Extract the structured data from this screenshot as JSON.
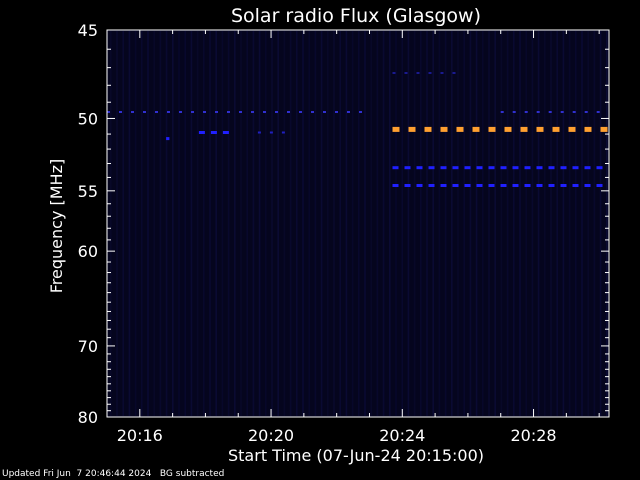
{
  "chart_data": {
    "type": "heatmap",
    "title": "Solar radio Flux (Glasgow)",
    "xlabel": "Start Time (07-Jun-24 20:15:00)",
    "ylabel": "Frequency [MHz]",
    "x_unit": "minutes after 20:15:00",
    "xlim": [
      0,
      15.3
    ],
    "ylim": [
      80,
      45
    ],
    "x_ticks": [
      {
        "value": 1,
        "label": "20:16"
      },
      {
        "value": 5,
        "label": "20:20"
      },
      {
        "value": 9,
        "label": "20:24"
      },
      {
        "value": 13,
        "label": "20:28"
      }
    ],
    "y_ticks": [
      {
        "value": 45,
        "label": "45"
      },
      {
        "value": 50,
        "label": "50"
      },
      {
        "value": 55,
        "label": "55"
      },
      {
        "value": 60,
        "label": "60"
      },
      {
        "value": 70,
        "label": "70"
      },
      {
        "value": 80,
        "label": "80"
      }
    ],
    "grid": false,
    "colors": {
      "background": "#000000",
      "plot_background": "#05051e",
      "faint_band": "#14145a",
      "blue_emission": "#1e1eff",
      "orange_emission": "#ffa030",
      "axis": "#ffffff"
    },
    "emission_bands": [
      {
        "freq": 49.6,
        "x_start": 0,
        "x_end": 7.9,
        "intensity": "faint",
        "color": "#3030d0"
      },
      {
        "freq": 49.6,
        "x_start": 12.0,
        "x_end": 15.3,
        "intensity": "faint",
        "color": "#3030d0"
      },
      {
        "freq": 50.9,
        "x_start": 2.8,
        "x_end": 3.9,
        "intensity": "medium",
        "color": "#2020ff"
      },
      {
        "freq": 50.9,
        "x_start": 4.6,
        "x_end": 5.6,
        "intensity": "faint",
        "color": "#2020c0"
      },
      {
        "freq": 51.3,
        "x_start": 1.8,
        "x_end": 1.9,
        "intensity": "medium",
        "color": "#2020ff"
      },
      {
        "freq": 50.7,
        "x_start": 8.7,
        "x_end": 15.3,
        "intensity": "high",
        "color": "#ffa030"
      },
      {
        "freq": 53.3,
        "x_start": 8.7,
        "x_end": 15.3,
        "intensity": "medium",
        "color": "#2020ff"
      },
      {
        "freq": 54.6,
        "x_start": 8.7,
        "x_end": 15.3,
        "intensity": "medium",
        "color": "#2020ff"
      },
      {
        "freq": 47.3,
        "x_start": 8.7,
        "x_end": 10.8,
        "intensity": "faint",
        "color": "#1a1a90"
      }
    ]
  },
  "footer": {
    "updated": "Updated Fri Jun  7 20:46:44 2024",
    "note": "BG subtracted"
  }
}
